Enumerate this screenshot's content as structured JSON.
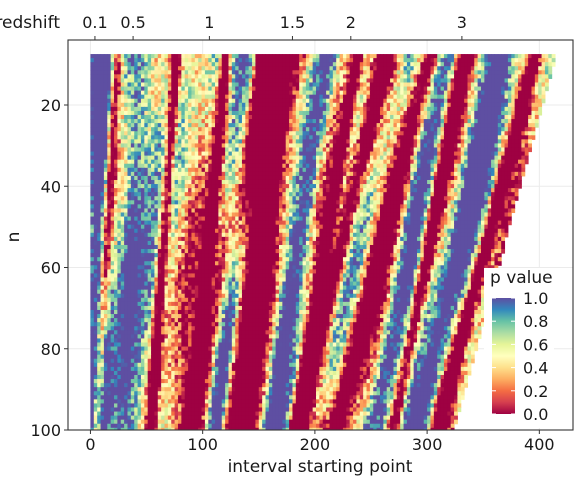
{
  "chart_data": {
    "type": "heatmap",
    "title": "",
    "xlabel": "interval starting point",
    "ylabel": "n",
    "secondary_x_label": "redshift",
    "xlim": [
      -20,
      430
    ],
    "ylim": [
      100,
      4
    ],
    "x_ticks": [
      0,
      100,
      200,
      300,
      400
    ],
    "y_ticks": [
      20,
      40,
      60,
      80,
      100
    ],
    "redshift_ticks": [
      {
        "label": "0.1",
        "at_start": 4
      },
      {
        "label": "0.5",
        "at_start": 38
      },
      {
        "label": "1",
        "at_start": 106
      },
      {
        "label": "1.5",
        "at_start": 180
      },
      {
        "label": "2",
        "at_start": 232
      },
      {
        "label": "3",
        "at_start": 331
      }
    ],
    "grid": true,
    "data_region": {
      "n_range": [
        8,
        100
      ],
      "start_min": 0,
      "start_max_at_n8": 413,
      "start_max_at_n100": 323
    },
    "low_p_bands": [
      {
        "start_at_n8": 178,
        "slope": -0.55,
        "width": 16
      },
      {
        "start_at_n8": 158,
        "slope": -0.75,
        "width": 12
      },
      {
        "start_at_n8": 300,
        "slope": -0.9,
        "width": 9
      },
      {
        "start_at_n8": 262,
        "slope": -0.85,
        "width": 8
      },
      {
        "start_at_n8": 22,
        "slope": -0.2,
        "width": 5
      },
      {
        "start_at_n8": 333,
        "slope": -0.7,
        "width": 6
      },
      {
        "start_at_n8": 236,
        "slope": -0.6,
        "width": 5
      },
      {
        "start_at_n8": 120,
        "slope": -0.35,
        "width": 5
      },
      {
        "start_at_n8": 75,
        "slope": -0.25,
        "width": 5
      },
      {
        "start_at_n8": 395,
        "slope": -0.95,
        "width": 6
      }
    ],
    "high_p_bands": [
      {
        "start_at_n8": 140,
        "slope": -0.3,
        "width": 10
      },
      {
        "start_at_n8": 42,
        "slope": -0.15,
        "width": 12
      },
      {
        "start_at_n8": 210,
        "slope": -0.55,
        "width": 10
      },
      {
        "start_at_n8": 318,
        "slope": -0.75,
        "width": 10
      },
      {
        "start_at_n8": 365,
        "slope": -0.8,
        "width": 10
      },
      {
        "start_at_n8": 10,
        "slope": -0.05,
        "width": 10
      }
    ],
    "legend": {
      "title": "p value",
      "placement": "right",
      "ticks": [
        "1.0",
        "0.8",
        "0.6",
        "0.4",
        "0.2",
        "0.0"
      ],
      "range": [
        0,
        1
      ]
    },
    "colormap": [
      "#9e0142",
      "#d53e4f",
      "#f46d43",
      "#fdae61",
      "#fee08b",
      "#ffffbf",
      "#e6f598",
      "#abdda4",
      "#66c2a5",
      "#3288bd",
      "#5e4fa2"
    ]
  }
}
